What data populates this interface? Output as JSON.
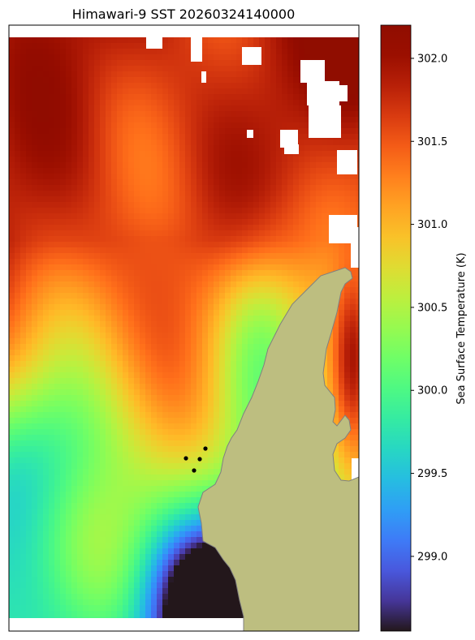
{
  "chart_data": {
    "type": "heatmap",
    "title": "Himawari-9 SST 20260324140000",
    "colorbar": {
      "label": "Sea Surface Temperature (K)",
      "range": [
        298.55,
        302.2
      ],
      "ticks": [
        "299.0",
        "299.5",
        "300.0",
        "300.5",
        "301.0",
        "301.5",
        "302.0"
      ],
      "tick_values": [
        299.0,
        299.5,
        300.0,
        300.5,
        301.0,
        301.5,
        302.0
      ],
      "colormap": "turbo"
    },
    "field": {
      "description_of_values": "SST in K over a gridded ocean area",
      "min": 298.6,
      "max": 302.2,
      "warm_north": 301.7,
      "cool_south_east": 298.7,
      "cloud_mask_color": "#ffffff"
    },
    "station_markers": {
      "count": 4,
      "color": "#000000"
    },
    "colors": {
      "land": "#bdbe80",
      "coast": "#808080",
      "missing": "#ffffff",
      "frame": "#000000"
    }
  }
}
